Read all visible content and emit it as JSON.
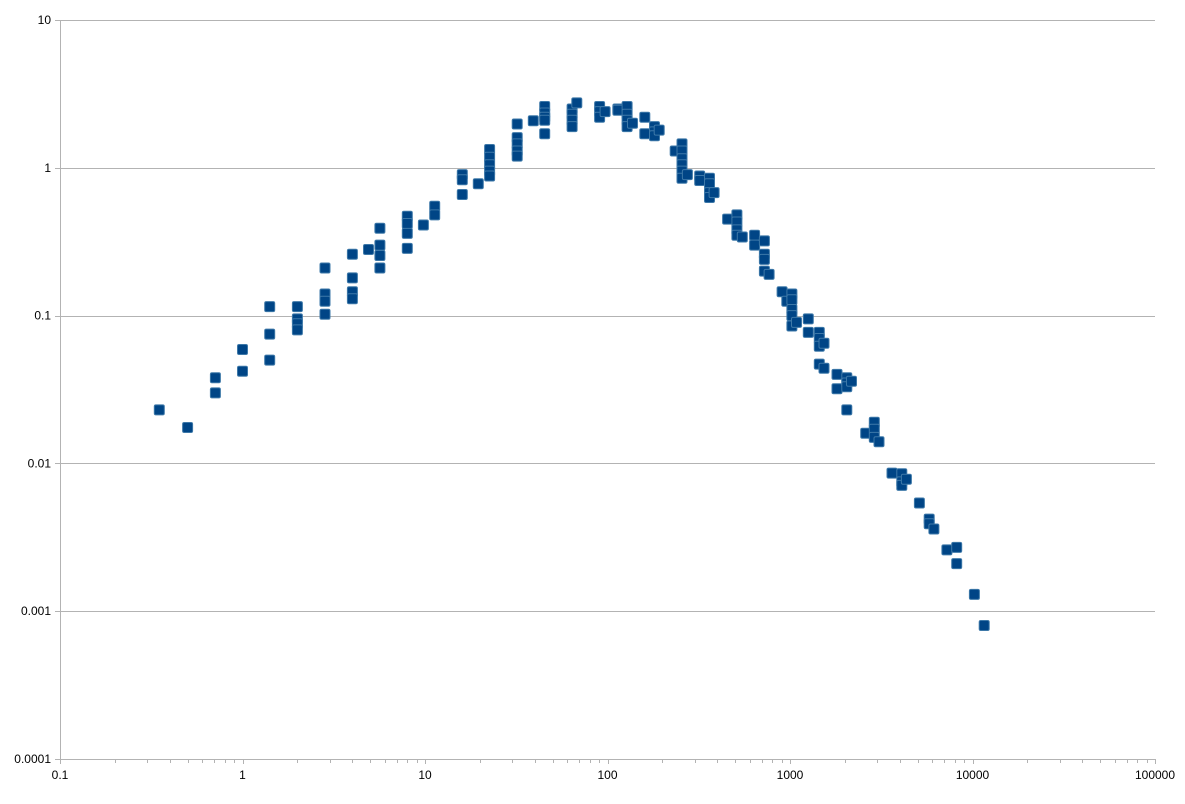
{
  "chart_data": {
    "type": "scatter",
    "title": "",
    "xlabel": "",
    "ylabel": "",
    "x_scale": "log",
    "y_scale": "log",
    "xlim": [
      0.1,
      100000
    ],
    "ylim": [
      0.0001,
      10
    ],
    "grid": "horizontal",
    "legend": "none",
    "x_ticks": [
      "0.1",
      "1",
      "10",
      "100",
      "1000",
      "10000",
      "100000"
    ],
    "y_ticks": [
      "0.0001",
      "0.001",
      "0.01",
      "0.1",
      "1",
      "10"
    ],
    "marker_color": "#004586",
    "points": [
      [
        0.35,
        0.023
      ],
      [
        0.5,
        0.0175
      ],
      [
        0.71,
        0.038
      ],
      [
        0.71,
        0.03
      ],
      [
        1.0,
        0.059
      ],
      [
        1.0,
        0.042
      ],
      [
        1.41,
        0.115
      ],
      [
        1.41,
        0.075
      ],
      [
        1.41,
        0.05
      ],
      [
        2.0,
        0.115
      ],
      [
        2.0,
        0.095
      ],
      [
        2.0,
        0.088
      ],
      [
        2.0,
        0.08
      ],
      [
        2.83,
        0.21
      ],
      [
        2.83,
        0.14
      ],
      [
        2.83,
        0.125
      ],
      [
        2.83,
        0.102
      ],
      [
        4.0,
        0.26
      ],
      [
        4.0,
        0.18
      ],
      [
        4.0,
        0.145
      ],
      [
        4.0,
        0.13
      ],
      [
        4.9,
        0.28
      ],
      [
        5.66,
        0.39
      ],
      [
        5.66,
        0.3
      ],
      [
        5.66,
        0.255
      ],
      [
        5.66,
        0.21
      ],
      [
        8.0,
        0.47
      ],
      [
        8.0,
        0.42
      ],
      [
        8.0,
        0.36
      ],
      [
        8.0,
        0.285
      ],
      [
        9.8,
        0.41
      ],
      [
        11.3,
        0.55
      ],
      [
        11.3,
        0.48
      ],
      [
        16.0,
        0.9
      ],
      [
        16.0,
        0.83
      ],
      [
        16.0,
        0.66
      ],
      [
        19.6,
        0.78
      ],
      [
        22.6,
        1.33
      ],
      [
        22.6,
        1.18
      ],
      [
        22.6,
        1.05
      ],
      [
        22.6,
        0.95
      ],
      [
        22.6,
        0.88
      ],
      [
        32.0,
        1.98
      ],
      [
        32.0,
        1.6
      ],
      [
        32.0,
        1.45
      ],
      [
        32.0,
        1.3
      ],
      [
        32.0,
        1.2
      ],
      [
        39.2,
        2.08
      ],
      [
        45.3,
        2.6
      ],
      [
        45.3,
        2.35
      ],
      [
        45.3,
        2.2
      ],
      [
        45.3,
        2.1
      ],
      [
        45.3,
        1.7
      ],
      [
        64.0,
        2.5
      ],
      [
        64.0,
        2.3
      ],
      [
        64.0,
        2.1
      ],
      [
        64.0,
        1.9
      ],
      [
        67.9,
        2.75
      ],
      [
        90.5,
        2.6
      ],
      [
        90.5,
        2.4
      ],
      [
        90.5,
        2.2
      ],
      [
        97.0,
        2.4
      ],
      [
        114.0,
        2.5
      ],
      [
        114.0,
        2.45
      ],
      [
        128.0,
        2.6
      ],
      [
        128.0,
        2.3
      ],
      [
        128.0,
        2.1
      ],
      [
        128.0,
        1.9
      ],
      [
        137.0,
        2.0
      ],
      [
        160.0,
        2.2
      ],
      [
        160.0,
        1.7
      ],
      [
        181.0,
        1.9
      ],
      [
        181.0,
        1.75
      ],
      [
        181.0,
        1.65
      ],
      [
        192.0,
        1.8
      ],
      [
        235.0,
        1.3
      ],
      [
        256.0,
        1.45
      ],
      [
        256.0,
        1.3
      ],
      [
        256.0,
        1.15
      ],
      [
        256.0,
        1.05
      ],
      [
        256.0,
        0.95
      ],
      [
        256.0,
        0.85
      ],
      [
        274.0,
        0.9
      ],
      [
        320.0,
        0.88
      ],
      [
        320.0,
        0.82
      ],
      [
        362.0,
        0.85
      ],
      [
        362.0,
        0.78
      ],
      [
        362.0,
        0.68
      ],
      [
        362.0,
        0.63
      ],
      [
        384.0,
        0.68
      ],
      [
        455.0,
        0.45
      ],
      [
        512.0,
        0.48
      ],
      [
        512.0,
        0.43
      ],
      [
        512.0,
        0.38
      ],
      [
        512.0,
        0.35
      ],
      [
        548.0,
        0.34
      ],
      [
        640.0,
        0.35
      ],
      [
        640.0,
        0.3
      ],
      [
        724.0,
        0.32
      ],
      [
        724.0,
        0.26
      ],
      [
        724.0,
        0.24
      ],
      [
        724.0,
        0.2
      ],
      [
        768.0,
        0.19
      ],
      [
        905.0,
        0.145
      ],
      [
        960.0,
        0.125
      ],
      [
        1024.0,
        0.14
      ],
      [
        1024.0,
        0.128
      ],
      [
        1024.0,
        0.11
      ],
      [
        1024.0,
        0.1
      ],
      [
        1024.0,
        0.085
      ],
      [
        1086.0,
        0.09
      ],
      [
        1260.0,
        0.095
      ],
      [
        1260.0,
        0.077
      ],
      [
        1448.0,
        0.077
      ],
      [
        1448.0,
        0.07
      ],
      [
        1448.0,
        0.062
      ],
      [
        1448.0,
        0.047
      ],
      [
        1536.0,
        0.065
      ],
      [
        1536.0,
        0.044
      ],
      [
        1810.0,
        0.04
      ],
      [
        1810.0,
        0.032
      ],
      [
        2048.0,
        0.038
      ],
      [
        2048.0,
        0.035
      ],
      [
        2048.0,
        0.033
      ],
      [
        2048.0,
        0.023
      ],
      [
        2172.0,
        0.036
      ],
      [
        2600.0,
        0.016
      ],
      [
        2896.0,
        0.019
      ],
      [
        2896.0,
        0.017
      ],
      [
        2896.0,
        0.015
      ],
      [
        3072.0,
        0.014
      ],
      [
        3620.0,
        0.0086
      ],
      [
        4096.0,
        0.0085
      ],
      [
        4096.0,
        0.0075
      ],
      [
        4096.0,
        0.0071
      ],
      [
        4344.0,
        0.0078
      ],
      [
        5120.0,
        0.0054
      ],
      [
        5793.0,
        0.0042
      ],
      [
        5793.0,
        0.0039
      ],
      [
        6144.0,
        0.0036
      ],
      [
        7240.0,
        0.0026
      ],
      [
        8192.0,
        0.0027
      ],
      [
        8192.0,
        0.0021
      ],
      [
        10240.0,
        0.0013
      ],
      [
        11585.0,
        0.0008
      ]
    ]
  }
}
